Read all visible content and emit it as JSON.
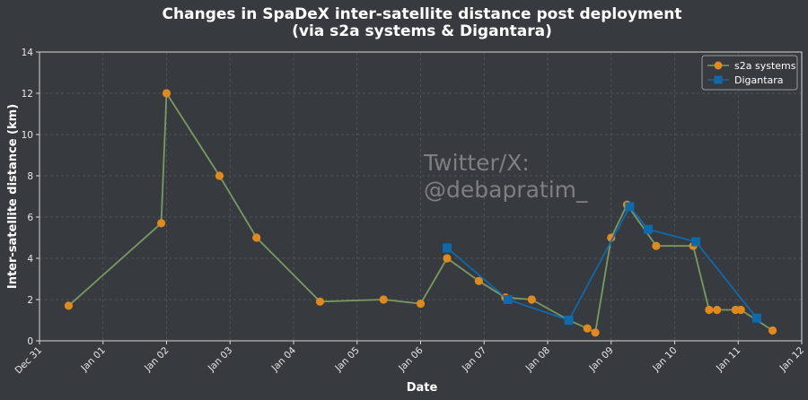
{
  "chart_data": {
    "type": "line",
    "title": "Changes in SpaDeX inter-satellite distance post deployment",
    "subtitle": "(via s2a systems & Digantara)",
    "xlabel": "Date",
    "ylabel": "Inter-satellite distance (km)",
    "x_axis_type": "date",
    "xlim": [
      "2024-12-31T00:00",
      "2025-01-12T00:00"
    ],
    "x_ticks": [
      "2024-12-31",
      "2025-01-01",
      "2025-01-02",
      "2025-01-03",
      "2025-01-04",
      "2025-01-05",
      "2025-01-06",
      "2025-01-07",
      "2025-01-08",
      "2025-01-09",
      "2025-01-10",
      "2025-01-11",
      "2025-01-12"
    ],
    "x_tick_labels": [
      "Dec 31",
      "Jan 01",
      "Jan 02",
      "Jan 03",
      "Jan 04",
      "Jan 05",
      "Jan 06",
      "Jan 07",
      "Jan 08",
      "Jan 09",
      "Jan 10",
      "Jan 11",
      "Jan 12"
    ],
    "ylim": [
      0,
      14
    ],
    "y_ticks": [
      0,
      2,
      4,
      6,
      8,
      10,
      12,
      14
    ],
    "grid": true,
    "legend_position": "top-right",
    "watermark": [
      "Twitter/X:",
      "@debapratim_"
    ],
    "series": [
      {
        "name": "s2a systems",
        "line_color": "#7a9a62",
        "marker_color": "#e08a1e",
        "marker": "circle",
        "points": [
          {
            "x": "2024-12-31T11:00",
            "y": 1.7
          },
          {
            "x": "2025-01-01T22:00",
            "y": 5.7
          },
          {
            "x": "2025-01-02T00:00",
            "y": 12.0
          },
          {
            "x": "2025-01-02T20:00",
            "y": 8.0
          },
          {
            "x": "2025-01-03T10:00",
            "y": 5.0
          },
          {
            "x": "2025-01-04T10:00",
            "y": 1.9
          },
          {
            "x": "2025-01-05T10:00",
            "y": 2.0
          },
          {
            "x": "2025-01-06T00:00",
            "y": 1.8
          },
          {
            "x": "2025-01-06T10:00",
            "y": 4.0
          },
          {
            "x": "2025-01-06T22:00",
            "y": 2.9
          },
          {
            "x": "2025-01-07T08:00",
            "y": 2.1
          },
          {
            "x": "2025-01-07T18:00",
            "y": 2.0
          },
          {
            "x": "2025-01-08T08:00",
            "y": 1.0
          },
          {
            "x": "2025-01-08T15:00",
            "y": 0.6
          },
          {
            "x": "2025-01-08T18:00",
            "y": 0.4
          },
          {
            "x": "2025-01-09T00:00",
            "y": 5.0
          },
          {
            "x": "2025-01-09T06:00",
            "y": 6.6
          },
          {
            "x": "2025-01-09T17:00",
            "y": 4.6
          },
          {
            "x": "2025-01-10T07:00",
            "y": 4.6
          },
          {
            "x": "2025-01-10T13:00",
            "y": 1.5
          },
          {
            "x": "2025-01-10T16:00",
            "y": 1.5
          },
          {
            "x": "2025-01-10T23:00",
            "y": 1.5
          },
          {
            "x": "2025-01-11T01:00",
            "y": 1.5
          },
          {
            "x": "2025-01-11T13:00",
            "y": 0.5
          }
        ]
      },
      {
        "name": "Digantara",
        "line_color": "#0e6aab",
        "marker_color": "#0e6aab",
        "marker": "square",
        "points": [
          {
            "x": "2025-01-06T10:00",
            "y": 4.5
          },
          {
            "x": "2025-01-07T09:00",
            "y": 2.0
          },
          {
            "x": "2025-01-08T08:00",
            "y": 1.0
          },
          {
            "x": "2025-01-09T07:00",
            "y": 6.5
          },
          {
            "x": "2025-01-09T14:00",
            "y": 5.4
          },
          {
            "x": "2025-01-10T08:00",
            "y": 4.8
          },
          {
            "x": "2025-01-11T07:00",
            "y": 1.1
          }
        ]
      }
    ]
  }
}
